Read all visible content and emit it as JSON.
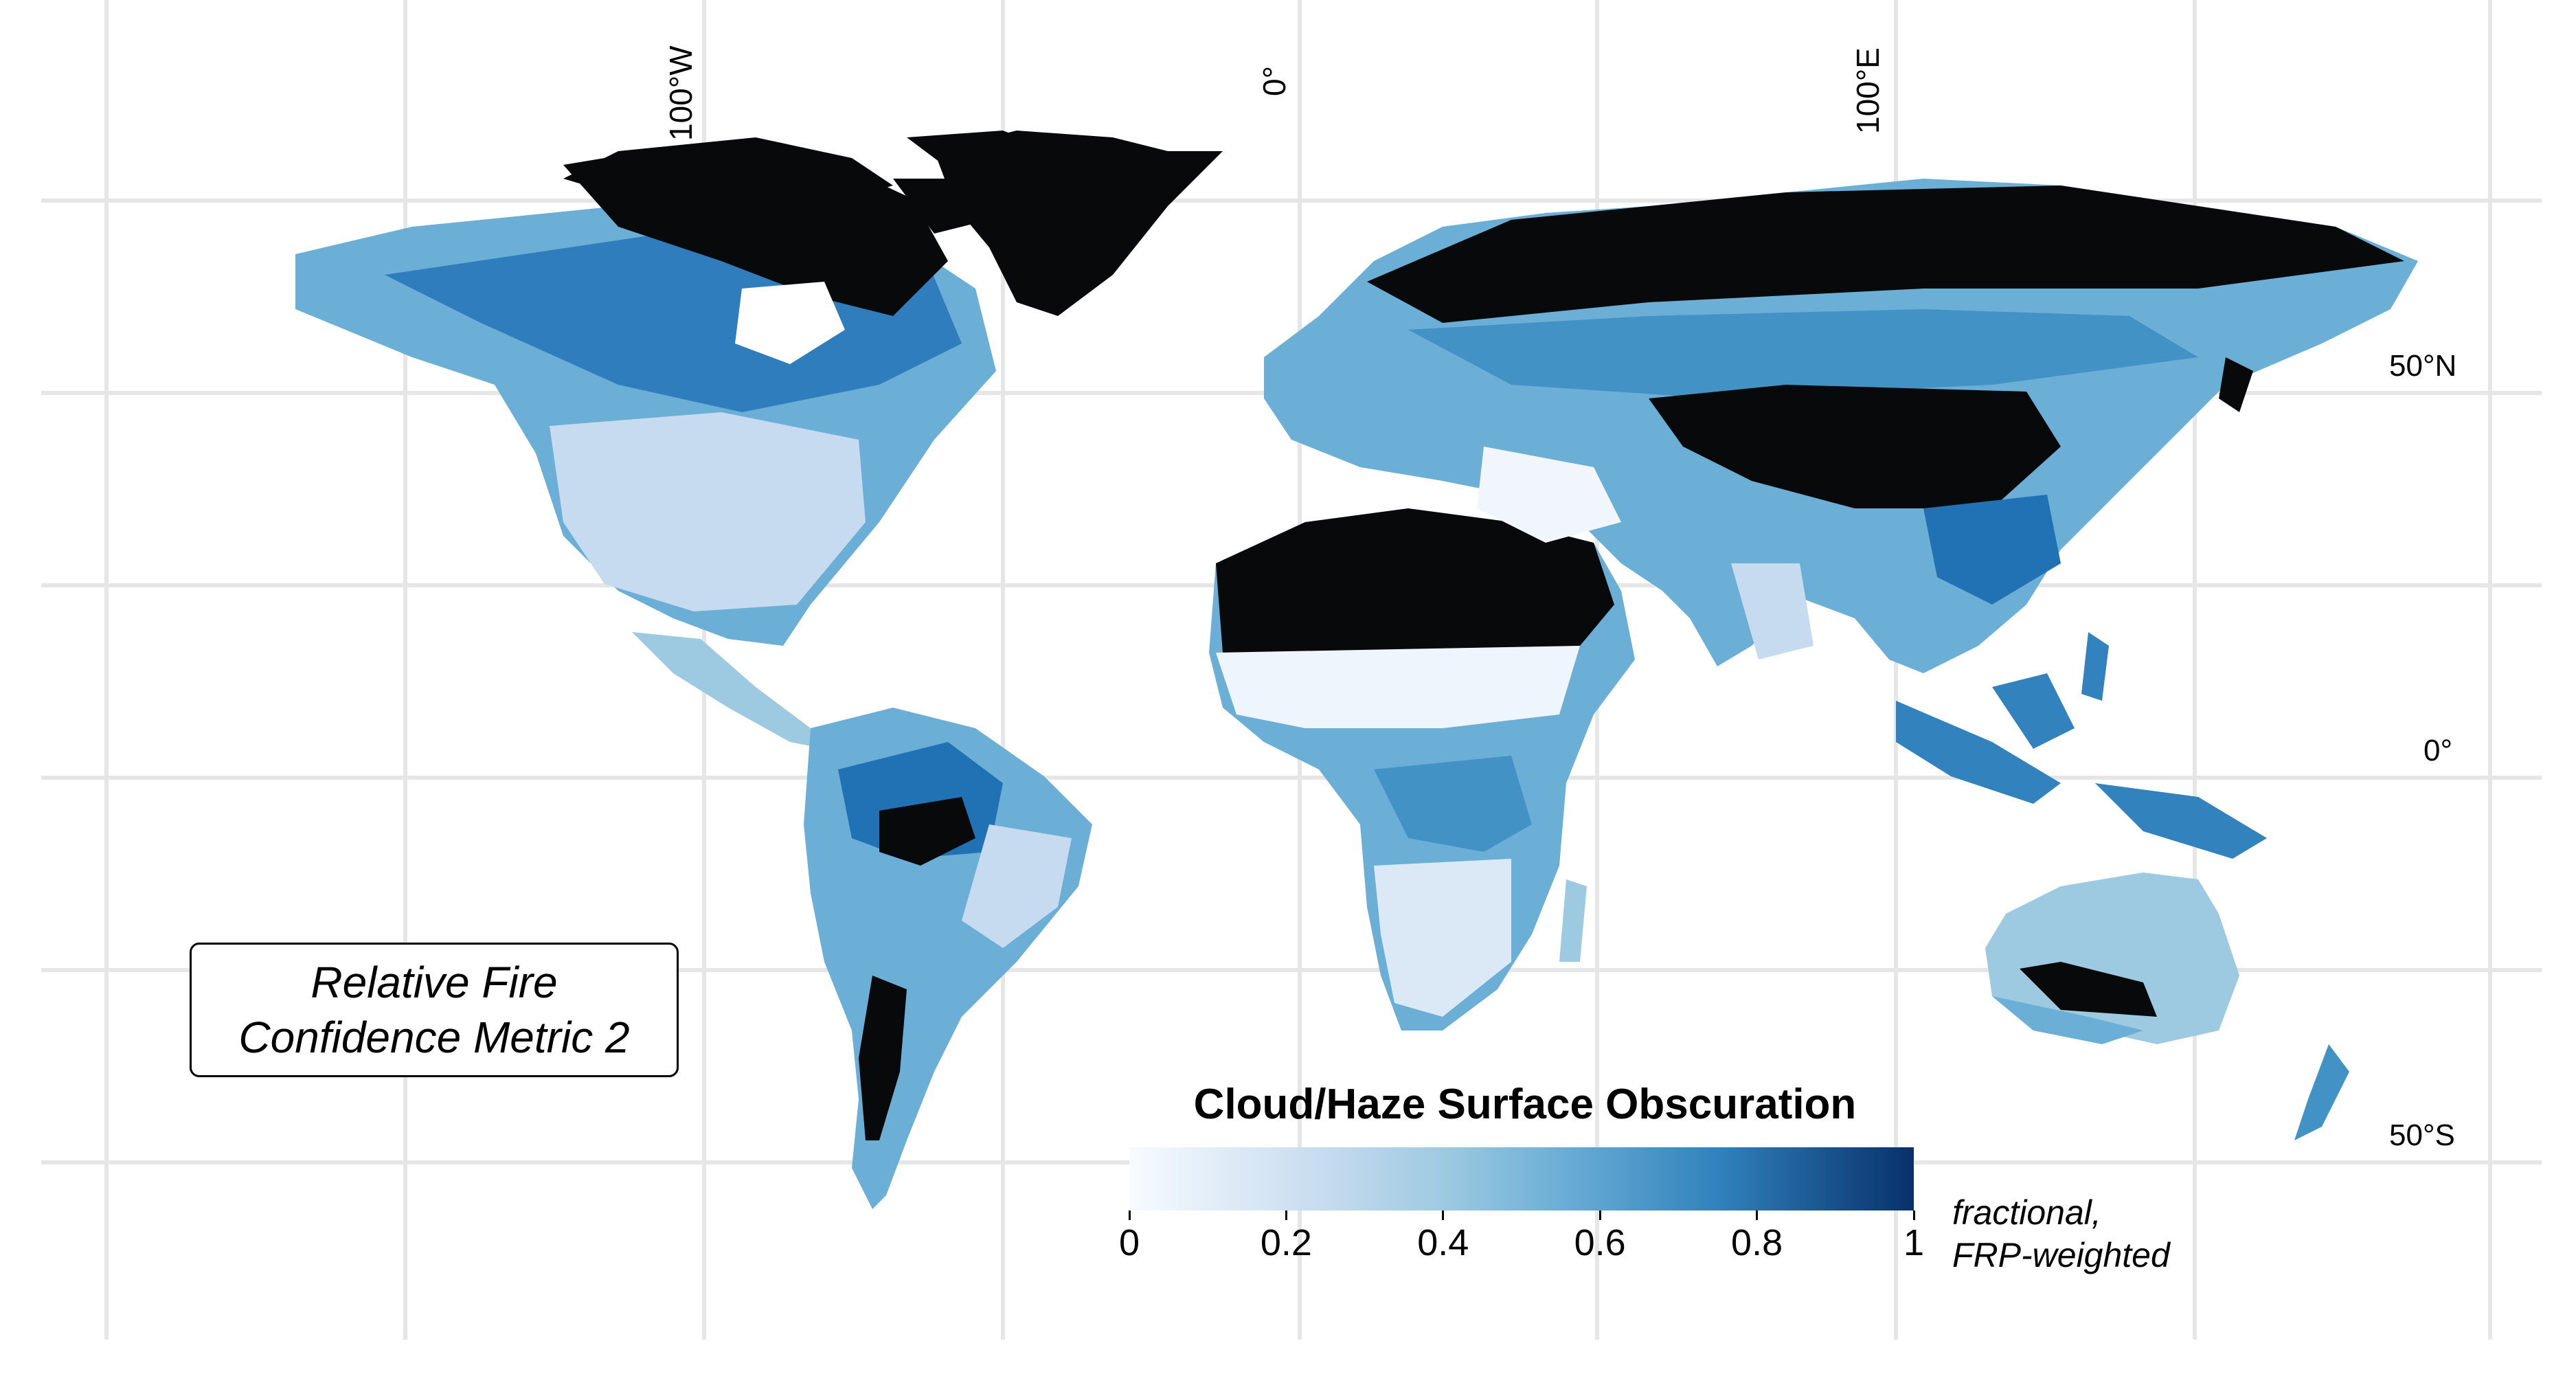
{
  "panel_label": {
    "line1": "Relative Fire",
    "line2": "Confidence Metric 2"
  },
  "longitude_labels": [
    "100°W",
    "0°",
    "100°E"
  ],
  "latitude_labels": [
    "50°N",
    "0°",
    "50°S"
  ],
  "legend": {
    "title": "Cloud/Haze Surface Obscuration",
    "ticks": [
      "0",
      "0.2",
      "0.4",
      "0.6",
      "0.8",
      "1"
    ],
    "tick_values": [
      0,
      0.2,
      0.4,
      0.6,
      0.8,
      1
    ],
    "range": [
      0,
      1
    ],
    "units_line1": "fractional,",
    "units_line2": "FRP-weighted",
    "colors": [
      "#f7fbff",
      "#c6dbef",
      "#9ecae1",
      "#6baed6",
      "#3182bd",
      "#08306b"
    ]
  },
  "colors": {
    "no_data_land": "#000000",
    "gridline": "#e6e6e6",
    "background": "#ffffff"
  }
}
